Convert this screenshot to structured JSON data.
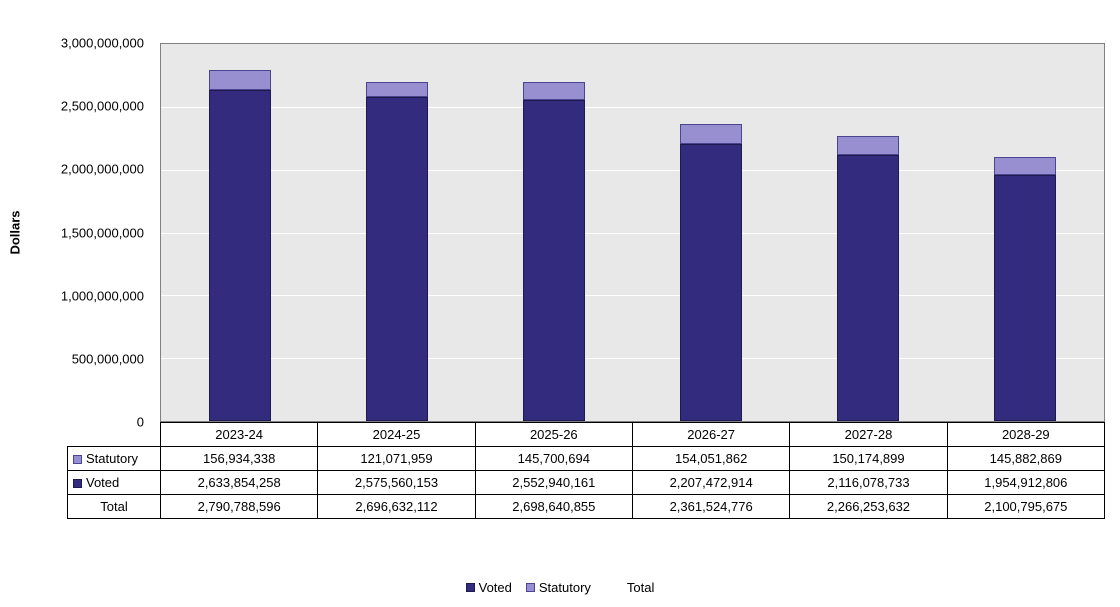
{
  "chart_data": {
    "type": "bar",
    "stacked": true,
    "title": "",
    "xlabel": "",
    "ylabel": "Dollars",
    "ylim": [
      0,
      3000000000
    ],
    "ytick_step": 500000000,
    "ytick_labels": [
      "0",
      "500,000,000",
      "1,000,000,000",
      "1,500,000,000",
      "2,000,000,000",
      "2,500,000,000",
      "3,000,000,000"
    ],
    "grid": true,
    "plot_background": "#e8e8e8",
    "legend_position": "bottom",
    "categories": [
      "2023-24",
      "2024-25",
      "2025-26",
      "2026-27",
      "2027-28",
      "2028-29"
    ],
    "series": [
      {
        "name": "Voted",
        "color": "#332c7e",
        "border": "#1f1a4e",
        "values": [
          2633854258,
          2575560153,
          2552940161,
          2207472914,
          2116078733,
          1954912806
        ]
      },
      {
        "name": "Statutory",
        "color": "#988fd0",
        "border": "#4a4590",
        "values": [
          156934338,
          121071959,
          145700694,
          154051862,
          150174899,
          145882869
        ]
      }
    ],
    "totals": {
      "name": "Total",
      "values": [
        2790788596,
        2696632112,
        2698640855,
        2361524776,
        2266253632,
        2100795675
      ]
    },
    "legend": [
      "Voted",
      "Statutory",
      "Total"
    ]
  },
  "table": {
    "rows": [
      {
        "label": "Statutory",
        "swatch": "#988fd0",
        "swatch_border": "#4a4590",
        "values": [
          "156,934,338",
          "121,071,959",
          "145,700,694",
          "154,051,862",
          "150,174,899",
          "145,882,869"
        ]
      },
      {
        "label": "Voted",
        "swatch": "#332c7e",
        "swatch_border": "#1f1a4e",
        "values": [
          "2,633,854,258",
          "2,575,560,153",
          "2,552,940,161",
          "2,207,472,914",
          "2,116,078,733",
          "1,954,912,806"
        ]
      },
      {
        "label": "Total",
        "swatch": null,
        "swatch_border": null,
        "values": [
          "2,790,788,596",
          "2,696,632,112",
          "2,698,640,855",
          "2,361,524,776",
          "2,266,253,632",
          "2,100,795,675"
        ]
      }
    ]
  }
}
